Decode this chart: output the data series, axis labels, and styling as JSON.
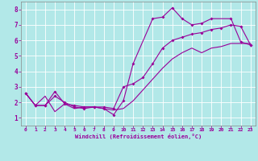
{
  "background_color": "#b2e8e8",
  "line_color": "#990099",
  "grid_color": "#aadddd",
  "xlabel": "Windchill (Refroidissement éolien,°C)",
  "xlabel_color": "#990099",
  "tick_color": "#990099",
  "xlim": [
    -0.5,
    23.5
  ],
  "ylim": [
    0.5,
    8.5
  ],
  "xticks": [
    0,
    1,
    2,
    3,
    4,
    5,
    6,
    7,
    8,
    9,
    10,
    11,
    12,
    13,
    14,
    15,
    16,
    17,
    18,
    19,
    20,
    21,
    22,
    23
  ],
  "yticks": [
    1,
    2,
    3,
    4,
    5,
    6,
    7,
    8
  ],
  "curve1_x": [
    0,
    1,
    2,
    3,
    4,
    5,
    6,
    7,
    8,
    9,
    10,
    11,
    13,
    14,
    15,
    16,
    17,
    18,
    19,
    21,
    22,
    23
  ],
  "curve1_y": [
    2.6,
    1.8,
    1.8,
    2.4,
    2.0,
    1.7,
    1.6,
    1.7,
    1.6,
    1.2,
    2.1,
    4.5,
    7.4,
    7.5,
    8.1,
    7.4,
    7.0,
    7.1,
    7.4,
    7.4,
    5.9,
    5.7
  ],
  "curve2_x": [
    0,
    1,
    2,
    3,
    4,
    5,
    6,
    7,
    8,
    9,
    10,
    11,
    12,
    13,
    14,
    15,
    16,
    17,
    18,
    19,
    20,
    21,
    22,
    23
  ],
  "curve2_y": [
    2.6,
    1.8,
    1.8,
    2.7,
    1.9,
    1.8,
    1.7,
    1.7,
    1.7,
    1.6,
    3.0,
    3.2,
    3.6,
    4.5,
    5.5,
    6.0,
    6.2,
    6.4,
    6.5,
    6.7,
    6.8,
    7.0,
    6.9,
    5.7
  ],
  "curve3_x": [
    0,
    1,
    2,
    3,
    4,
    5,
    6,
    7,
    8,
    9,
    10,
    11,
    12,
    13,
    14,
    15,
    16,
    17,
    18,
    19,
    20,
    21,
    22,
    23
  ],
  "curve3_y": [
    2.6,
    1.8,
    2.4,
    1.4,
    1.9,
    1.6,
    1.7,
    1.7,
    1.6,
    1.5,
    1.6,
    2.1,
    2.8,
    3.5,
    4.2,
    4.8,
    5.2,
    5.5,
    5.2,
    5.5,
    5.6,
    5.8,
    5.8,
    5.8
  ]
}
